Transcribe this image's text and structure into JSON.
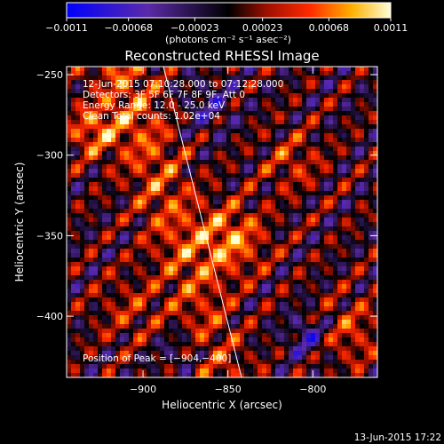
{
  "chart_data": {
    "type": "heatmap",
    "title": "Reconstructed RHESSI Image",
    "xlabel": "Heliocentric X (arcsec)",
    "ylabel": "Heliocentric Y (arcsec)",
    "xlim": [
      -945,
      -762
    ],
    "ylim": [
      -438,
      -245
    ],
    "x_ticks": [
      {
        "value": -900,
        "label": "−900"
      },
      {
        "value": -850,
        "label": "−850"
      },
      {
        "value": -800,
        "label": "−800"
      }
    ],
    "y_ticks": [
      {
        "value": -250,
        "label": "−250"
      },
      {
        "value": -300,
        "label": "−300"
      },
      {
        "value": -350,
        "label": "−350"
      },
      {
        "value": -400,
        "label": "−400"
      }
    ],
    "colorbar": {
      "min": -0.0011,
      "max": 0.0011,
      "ticks": [
        {
          "value": -0.0011,
          "label": "−0.0011"
        },
        {
          "value": -0.00068,
          "label": "−0.00068"
        },
        {
          "value": -0.00023,
          "label": "−0.00023"
        },
        {
          "value": 0.00023,
          "label": "0.00023"
        },
        {
          "value": 0.00068,
          "label": "0.00068"
        },
        {
          "value": 0.0011,
          "label": "0.0011"
        }
      ],
      "unit": "(photons cm⁻² s⁻¹ asec⁻²)"
    },
    "info_lines": [
      "12-Jun-2015 07:10:28.000 to 07:12:28.000",
      "Detectors: 3F 5F 6F 7F 8F 9F, Att 0",
      "Energy Range: 12.0 - 25.0 keV",
      "Clean    Total counts: 1.02e+04"
    ],
    "peak_label": "Position of Peak = [−904,−400]",
    "peak": [
      -904,
      -400
    ],
    "limb_line": [
      [
        -888,
        -245
      ],
      [
        -842,
        -438
      ]
    ],
    "timestamp": "13-Jun-2015 17:22"
  }
}
